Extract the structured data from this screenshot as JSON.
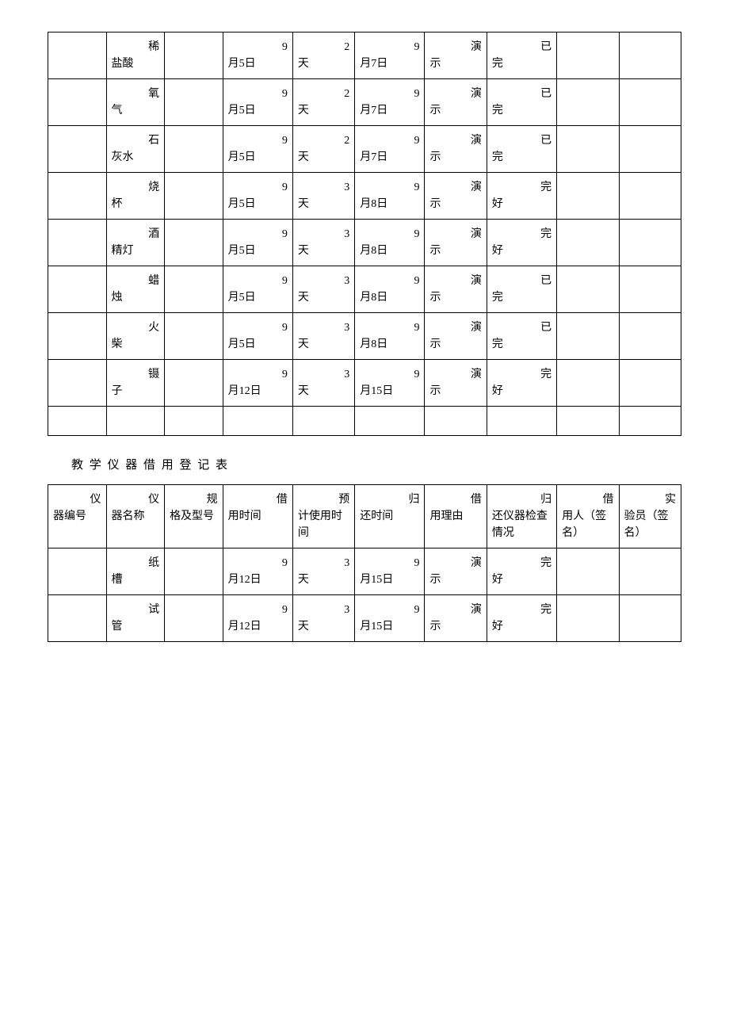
{
  "section_title": "教 学 仪 器 借 用 登 记 表",
  "columns": [
    {
      "label": "仪器编号",
      "first": "仪",
      "rest": "器编号"
    },
    {
      "label": "仪器名称",
      "first": "仪",
      "rest": "器名称"
    },
    {
      "label": "规格及型号",
      "first": "规",
      "rest": "格及型号"
    },
    {
      "label": "借用时间",
      "first": "借",
      "rest": "用时间"
    },
    {
      "label": "预计使用时间",
      "first": "预",
      "rest": "计使用时间"
    },
    {
      "label": "归还时间",
      "first": "归",
      "rest": "还时间"
    },
    {
      "label": "借用理由",
      "first": "借",
      "rest": "用理由"
    },
    {
      "label": "归还仪器检查情况",
      "first": "归",
      "rest": "还仪器检查情况"
    },
    {
      "label": "借用人（签名）",
      "first": "借",
      "rest": "用人（签名）"
    },
    {
      "label": "实验员（签名）",
      "first": "实",
      "rest": "验员（签名）"
    }
  ],
  "table1_rows": [
    {
      "c0": "",
      "c1": {
        "f": "稀",
        "r": "盐酸"
      },
      "c2": "",
      "c3": {
        "f": "9",
        "r": "月5日"
      },
      "c4": {
        "f": "2",
        "r": "天"
      },
      "c5": {
        "f": "9",
        "r": "月7日"
      },
      "c6": {
        "f": "演",
        "r": "示"
      },
      "c7": {
        "f": "已",
        "r": "完"
      },
      "c8": "",
      "c9": ""
    },
    {
      "c0": "",
      "c1": {
        "f": "氧",
        "r": "气"
      },
      "c2": "",
      "c3": {
        "f": "9",
        "r": "月5日"
      },
      "c4": {
        "f": "2",
        "r": "天"
      },
      "c5": {
        "f": "9",
        "r": "月7日"
      },
      "c6": {
        "f": "演",
        "r": "示"
      },
      "c7": {
        "f": "已",
        "r": "完"
      },
      "c8": "",
      "c9": ""
    },
    {
      "c0": "",
      "c1": {
        "f": "石",
        "r": "灰水"
      },
      "c2": "",
      "c3": {
        "f": "9",
        "r": "月5日"
      },
      "c4": {
        "f": "2",
        "r": "天"
      },
      "c5": {
        "f": "9",
        "r": "月7日"
      },
      "c6": {
        "f": "演",
        "r": "示"
      },
      "c7": {
        "f": "已",
        "r": "完"
      },
      "c8": "",
      "c9": ""
    },
    {
      "c0": "",
      "c1": {
        "f": "烧",
        "r": "杯"
      },
      "c2": "",
      "c3": {
        "f": "9",
        "r": "月5日"
      },
      "c4": {
        "f": "3",
        "r": "天"
      },
      "c5": {
        "f": "9",
        "r": "月8日"
      },
      "c6": {
        "f": "演",
        "r": "示"
      },
      "c7": {
        "f": "完",
        "r": "好"
      },
      "c8": "",
      "c9": ""
    },
    {
      "c0": "",
      "c1": {
        "f": "酒",
        "r": "精灯"
      },
      "c2": "",
      "c3": {
        "f": "9",
        "r": "月5日"
      },
      "c4": {
        "f": "3",
        "r": "天"
      },
      "c5": {
        "f": "9",
        "r": "月8日"
      },
      "c6": {
        "f": "演",
        "r": "示"
      },
      "c7": {
        "f": "完",
        "r": "好"
      },
      "c8": "",
      "c9": ""
    },
    {
      "c0": "",
      "c1": {
        "f": "蜡",
        "r": "烛"
      },
      "c2": "",
      "c3": {
        "f": "9",
        "r": "月5日"
      },
      "c4": {
        "f": "3",
        "r": "天"
      },
      "c5": {
        "f": "9",
        "r": "月8日"
      },
      "c6": {
        "f": "演",
        "r": "示"
      },
      "c7": {
        "f": "已",
        "r": "完"
      },
      "c8": "",
      "c9": ""
    },
    {
      "c0": "",
      "c1": {
        "f": "火",
        "r": "柴"
      },
      "c2": "",
      "c3": {
        "f": "9",
        "r": "月5日"
      },
      "c4": {
        "f": "3",
        "r": "天"
      },
      "c5": {
        "f": "9",
        "r": "月8日"
      },
      "c6": {
        "f": "演",
        "r": "示"
      },
      "c7": {
        "f": "已",
        "r": "完"
      },
      "c8": "",
      "c9": ""
    },
    {
      "c0": "",
      "c1": {
        "f": "镊",
        "r": "子"
      },
      "c2": "",
      "c3": {
        "f": "9",
        "r": "月12日"
      },
      "c4": {
        "f": "3",
        "r": "天"
      },
      "c5": {
        "f": "9",
        "r": "月15日"
      },
      "c6": {
        "f": "演",
        "r": "示"
      },
      "c7": {
        "f": "完",
        "r": "好"
      },
      "c8": "",
      "c9": ""
    }
  ],
  "table2_rows": [
    {
      "c0": "",
      "c1": {
        "f": "纸",
        "r": "槽"
      },
      "c2": "",
      "c3": {
        "f": "9",
        "r": "月12日"
      },
      "c4": {
        "f": "3",
        "r": "天"
      },
      "c5": {
        "f": "9",
        "r": "月15日"
      },
      "c6": {
        "f": "演",
        "r": "示"
      },
      "c7": {
        "f": "完",
        "r": "好"
      },
      "c8": "",
      "c9": ""
    },
    {
      "c0": "",
      "c1": {
        "f": "试",
        "r": "管"
      },
      "c2": "",
      "c3": {
        "f": "9",
        "r": "月12日"
      },
      "c4": {
        "f": "3",
        "r": "天"
      },
      "c5": {
        "f": "9",
        "r": "月15日"
      },
      "c6": {
        "f": "演",
        "r": "示"
      },
      "c7": {
        "f": "完",
        "r": "好"
      },
      "c8": "",
      "c9": ""
    }
  ],
  "style": {
    "border_color": "#000000",
    "background_color": "#ffffff",
    "text_color": "#000000",
    "font_family": "SimSun",
    "body_fontsize": 14,
    "title_fontsize": 15,
    "col_widths_pct": [
      7.5,
      7.5,
      7.5,
      9,
      8,
      9,
      8,
      9,
      8,
      8
    ]
  }
}
